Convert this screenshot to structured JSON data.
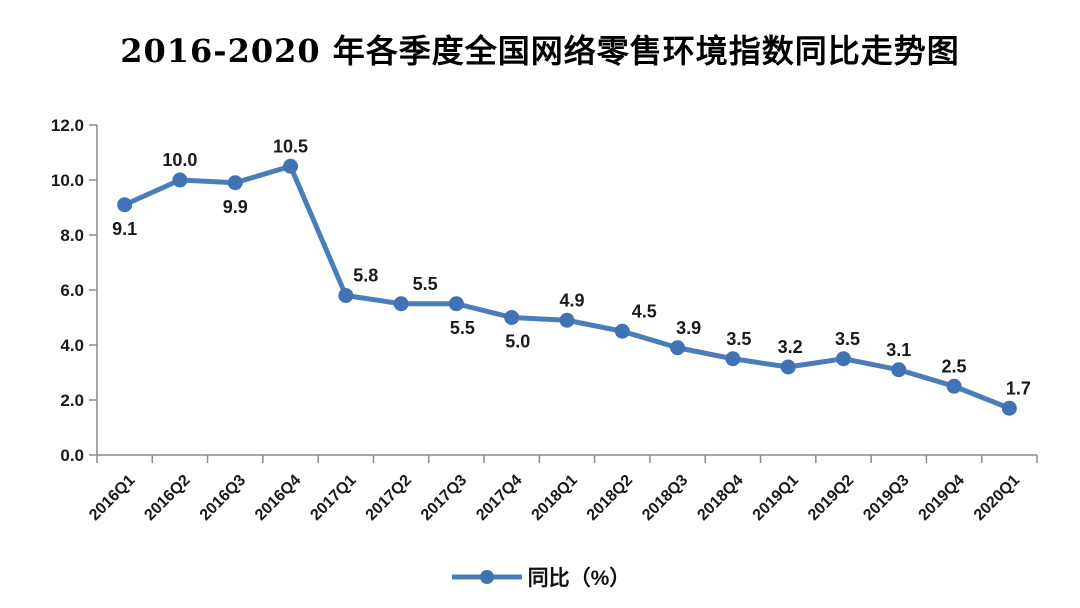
{
  "chart_data": {
    "type": "line",
    "title": "2016-2020 年各季度全国网络零售环境指数同比走势图",
    "categories": [
      "2016Q1",
      "2016Q2",
      "2016Q3",
      "2016Q4",
      "2017Q1",
      "2017Q2",
      "2017Q3",
      "2017Q4",
      "2018Q1",
      "2018Q2",
      "2018Q3",
      "2018Q4",
      "2019Q1",
      "2019Q2",
      "2019Q3",
      "2019Q4",
      "2020Q1"
    ],
    "series": [
      {
        "name": "同比（%）",
        "values": [
          9.1,
          10.0,
          9.9,
          10.5,
          5.8,
          5.5,
          5.5,
          5.0,
          4.9,
          4.5,
          3.9,
          3.5,
          3.2,
          3.5,
          3.1,
          2.5,
          1.7
        ]
      }
    ],
    "xlabel": "",
    "ylabel": "",
    "ylim": [
      0,
      12
    ],
    "ytick_labels": [
      "0.0",
      "2.0",
      "4.0",
      "6.0",
      "8.0",
      "10.0",
      "12.0"
    ],
    "grid": false,
    "legend_position": "bottom",
    "data_labels_shown": true,
    "label_positions": [
      "below",
      "above",
      "below",
      "above",
      "above",
      "above",
      "below",
      "below",
      "above",
      "above",
      "above",
      "above",
      "above",
      "above",
      "above",
      "above",
      "above"
    ],
    "label_dx": [
      0,
      0,
      0,
      0,
      20,
      24,
      6,
      6,
      5,
      22,
      11,
      6,
      2,
      4,
      0,
      0,
      9
    ],
    "colors": {
      "line": "#4a7ebb",
      "marker": "#4173b4",
      "axis": "#8a8a8a",
      "text": "#1a1a1a"
    }
  }
}
